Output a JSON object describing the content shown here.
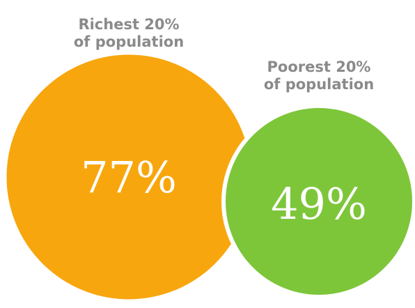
{
  "chart_data": {
    "type": "bubble",
    "unit": "%",
    "categories": [
      {
        "label_lines": [
          "Richest 20%",
          "of population"
        ],
        "value": 77,
        "value_label": "77%",
        "color": "#F8A60E"
      },
      {
        "label_lines": [
          "Poorest 20%",
          "of population"
        ],
        "value": 49,
        "value_label": "49%",
        "color": "#7DC63A"
      }
    ]
  }
}
